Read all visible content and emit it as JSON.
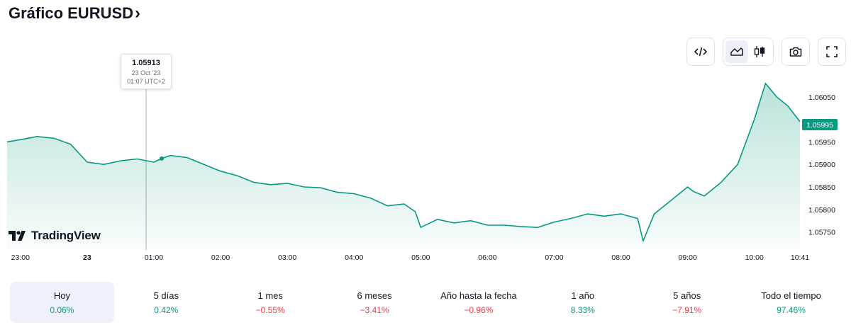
{
  "header": {
    "title": "Gráfico EURUSD",
    "chevron": "›"
  },
  "toolbar": {
    "buttons": [
      {
        "name": "embed-code-icon"
      },
      {
        "name": "area-chart-icon",
        "active": true
      },
      {
        "name": "candlestick-icon"
      },
      {
        "name": "camera-icon"
      },
      {
        "name": "fullscreen-icon"
      }
    ]
  },
  "tooltip": {
    "value": "1.05913",
    "date": "23 Oct '23",
    "time": "01:07 UTC+2"
  },
  "last_price_label": "1.05995",
  "logo": {
    "text": "TradingView"
  },
  "colors": {
    "line": "#089981",
    "positive": "#089981",
    "negative": "#f23645",
    "price_tag": "#089981"
  },
  "chart_data": {
    "type": "area",
    "ylim": [
      1.0571,
      1.061
    ],
    "yticks": [
      "1.05750",
      "1.05800",
      "1.05850",
      "1.05900",
      "1.05950",
      "1.06050"
    ],
    "xticks": [
      "23:00",
      "23",
      "01:00",
      "02:00",
      "03:00",
      "04:00",
      "05:00",
      "06:00",
      "07:00",
      "08:00",
      "09:00",
      "10:00",
      "10:41"
    ],
    "x": [
      "22:48",
      "23:00",
      "23:15",
      "23:30",
      "23:45",
      "00:00",
      "00:15",
      "00:30",
      "00:45",
      "01:00",
      "01:07",
      "01:15",
      "01:30",
      "01:45",
      "02:00",
      "02:15",
      "02:30",
      "02:45",
      "03:00",
      "03:15",
      "03:30",
      "03:45",
      "04:00",
      "04:15",
      "04:30",
      "04:45",
      "04:55",
      "05:00",
      "05:15",
      "05:30",
      "05:45",
      "06:00",
      "06:15",
      "06:30",
      "06:45",
      "07:00",
      "07:15",
      "07:30",
      "07:45",
      "08:00",
      "08:15",
      "08:20",
      "08:30",
      "08:45",
      "09:00",
      "09:05",
      "09:15",
      "09:30",
      "09:45",
      "10:00",
      "10:10",
      "10:20",
      "10:30",
      "10:41"
    ],
    "values": [
      1.0595,
      1.05955,
      1.05962,
      1.05958,
      1.05945,
      1.05905,
      1.059,
      1.05908,
      1.05912,
      1.05905,
      1.05913,
      1.0592,
      1.05915,
      1.059,
      1.05885,
      1.05875,
      1.0586,
      1.05855,
      1.05858,
      1.0585,
      1.05848,
      1.05838,
      1.05835,
      1.05825,
      1.05808,
      1.05812,
      1.05795,
      1.0576,
      1.05778,
      1.0577,
      1.05775,
      1.05765,
      1.05765,
      1.05762,
      1.0576,
      1.05772,
      1.0578,
      1.0579,
      1.05785,
      1.0579,
      1.0578,
      1.0573,
      1.0579,
      1.0582,
      1.0585,
      1.0584,
      1.0583,
      1.0586,
      1.059,
      1.06,
      1.0608,
      1.0605,
      1.0603,
      1.05995
    ],
    "title": "",
    "xlabel": "",
    "ylabel": "",
    "grid": false
  },
  "performance": [
    {
      "label": "Hoy",
      "value": "0.06%",
      "sign": "positive",
      "active": true
    },
    {
      "label": "5 días",
      "value": "0.42%",
      "sign": "positive"
    },
    {
      "label": "1 mes",
      "value": "−0.55%",
      "sign": "negative"
    },
    {
      "label": "6 meses",
      "value": "−3.41%",
      "sign": "negative"
    },
    {
      "label": "Año hasta la fecha",
      "value": "−0.96%",
      "sign": "negative"
    },
    {
      "label": "1 año",
      "value": "8.33%",
      "sign": "positive"
    },
    {
      "label": "5 años",
      "value": "−7.91%",
      "sign": "negative"
    },
    {
      "label": "Todo el tiempo",
      "value": "97.46%",
      "sign": "positive"
    }
  ]
}
